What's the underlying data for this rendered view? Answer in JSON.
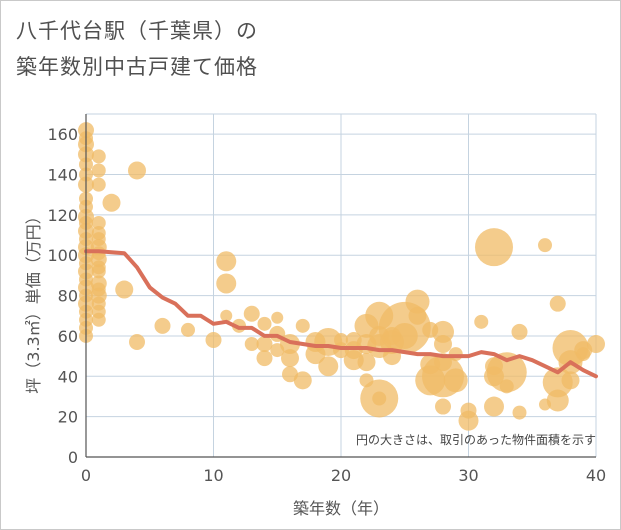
{
  "title_line1": "八千代台駅（千葉県）の",
  "title_line2": "築年数別中古戸建て価格",
  "chart_data": {
    "type": "scatter",
    "xlabel": "築年数（年）",
    "ylabel": "坪（3.3㎡）単価（万円）",
    "note": "円の大きさは、取引のあった物件面積を示す",
    "xlim": [
      0,
      40
    ],
    "ylim": [
      0,
      170
    ],
    "x_ticks": [
      "0",
      "10",
      "20",
      "30",
      "40"
    ],
    "y_ticks": [
      "0",
      "20",
      "40",
      "60",
      "80",
      "100",
      "120",
      "140",
      "160"
    ],
    "x_tick_values": [
      0,
      10,
      20,
      30,
      40
    ],
    "y_tick_values": [
      0,
      20,
      40,
      60,
      80,
      100,
      120,
      140,
      160
    ],
    "grid": true,
    "colors": {
      "bubble": "#f0bb66",
      "line": "#d9705a",
      "grid": "#c5d3e0",
      "axis": "#555555"
    },
    "series": [
      {
        "type": "bubble",
        "points": [
          [
            0,
            162,
            8
          ],
          [
            0,
            158,
            7
          ],
          [
            0,
            155,
            8
          ],
          [
            0,
            150,
            8
          ],
          [
            0,
            145,
            7
          ],
          [
            0,
            140,
            7
          ],
          [
            0,
            135,
            8
          ],
          [
            0,
            128,
            7
          ],
          [
            0,
            124,
            7
          ],
          [
            0,
            119,
            8
          ],
          [
            0,
            116,
            7
          ],
          [
            0,
            112,
            8
          ],
          [
            0,
            108,
            7
          ],
          [
            0,
            104,
            8
          ],
          [
            0,
            100,
            8
          ],
          [
            0,
            96,
            7
          ],
          [
            0,
            92,
            8
          ],
          [
            0,
            88,
            7
          ],
          [
            0,
            84,
            8
          ],
          [
            0,
            80,
            7
          ],
          [
            0,
            76,
            8
          ],
          [
            0,
            72,
            7
          ],
          [
            0,
            68,
            7
          ],
          [
            0,
            64,
            7
          ],
          [
            0,
            60,
            7
          ],
          [
            1,
            149,
            7
          ],
          [
            1,
            142,
            7
          ],
          [
            1,
            135,
            7
          ],
          [
            1,
            116,
            7
          ],
          [
            1,
            111,
            7
          ],
          [
            1,
            108,
            7
          ],
          [
            1,
            104,
            8
          ],
          [
            1,
            101,
            7
          ],
          [
            1,
            98,
            8
          ],
          [
            1,
            94,
            7
          ],
          [
            1,
            92,
            7
          ],
          [
            1,
            86,
            8
          ],
          [
            1,
            83,
            7
          ],
          [
            1,
            80,
            8
          ],
          [
            1,
            76,
            7
          ],
          [
            1,
            72,
            7
          ],
          [
            1,
            68,
            7
          ],
          [
            2,
            126,
            9
          ],
          [
            3,
            83,
            9
          ],
          [
            4,
            142,
            9
          ],
          [
            4,
            57,
            8
          ],
          [
            6,
            65,
            8
          ],
          [
            8,
            63,
            7
          ],
          [
            10,
            58,
            8
          ],
          [
            11,
            97,
            10
          ],
          [
            11,
            86,
            10
          ],
          [
            11,
            70,
            6
          ],
          [
            12,
            65,
            7
          ],
          [
            13,
            71,
            8
          ],
          [
            13,
            56,
            7
          ],
          [
            14,
            49,
            8
          ],
          [
            14,
            56,
            8
          ],
          [
            14,
            66,
            7
          ],
          [
            15,
            61,
            8
          ],
          [
            15,
            53,
            7
          ],
          [
            15,
            69,
            6
          ],
          [
            16,
            56,
            10
          ],
          [
            16,
            49,
            9
          ],
          [
            16,
            41,
            8
          ],
          [
            17,
            65,
            7
          ],
          [
            17,
            38,
            9
          ],
          [
            18,
            57,
            10
          ],
          [
            18,
            51,
            10
          ],
          [
            19,
            45,
            10
          ],
          [
            19,
            57,
            14
          ],
          [
            20,
            53,
            8
          ],
          [
            20,
            58,
            7
          ],
          [
            21,
            48,
            10
          ],
          [
            21,
            58,
            8
          ],
          [
            21,
            53,
            9
          ],
          [
            22,
            65,
            12
          ],
          [
            22,
            56,
            10
          ],
          [
            22,
            47,
            9
          ],
          [
            22,
            38,
            7
          ],
          [
            23,
            70,
            14
          ],
          [
            23,
            60,
            10
          ],
          [
            23,
            55,
            12
          ],
          [
            23,
            29,
            19
          ],
          [
            23,
            29,
            7
          ],
          [
            24,
            57,
            12
          ],
          [
            24,
            50,
            9
          ],
          [
            24,
            60,
            9
          ],
          [
            25,
            64,
            26
          ],
          [
            25,
            60,
            13
          ],
          [
            26,
            77,
            12
          ],
          [
            26,
            70,
            9
          ],
          [
            27,
            63,
            8
          ],
          [
            27,
            46,
            10
          ],
          [
            27,
            38,
            15
          ],
          [
            28,
            62,
            11
          ],
          [
            28,
            56,
            9
          ],
          [
            28,
            47,
            9
          ],
          [
            28,
            40,
            21
          ],
          [
            28,
            25,
            8
          ],
          [
            29,
            51,
            7
          ],
          [
            29,
            38,
            12
          ],
          [
            30,
            23,
            8
          ],
          [
            30,
            18,
            10
          ],
          [
            31,
            67,
            7
          ],
          [
            32,
            104,
            19
          ],
          [
            32,
            45,
            9
          ],
          [
            32,
            40,
            10
          ],
          [
            32,
            25,
            10
          ],
          [
            33,
            42,
            20
          ],
          [
            33,
            35,
            7
          ],
          [
            34,
            62,
            8
          ],
          [
            34,
            22,
            7
          ],
          [
            36,
            105,
            7
          ],
          [
            36,
            26,
            6
          ],
          [
            37,
            76,
            8
          ],
          [
            37,
            37,
            15
          ],
          [
            37,
            28,
            11
          ],
          [
            38,
            54,
            18
          ],
          [
            38,
            47,
            12
          ],
          [
            38,
            38,
            9
          ],
          [
            39,
            51,
            7
          ],
          [
            39,
            53,
            9
          ],
          [
            40,
            56,
            9
          ]
        ]
      },
      {
        "type": "line",
        "x": [
          0,
          1,
          2,
          3,
          4,
          5,
          6,
          7,
          8,
          9,
          10,
          11,
          12,
          13,
          14,
          15,
          16,
          17,
          18,
          19,
          20,
          21,
          22,
          23,
          24,
          25,
          26,
          27,
          28,
          29,
          30,
          31,
          32,
          33,
          34,
          35,
          36,
          37,
          38,
          39,
          40
        ],
        "y": [
          102,
          102,
          101.5,
          101,
          94,
          84,
          79,
          76,
          70,
          70,
          66,
          67,
          64,
          64,
          60,
          60,
          57,
          56,
          55,
          55,
          54,
          54,
          54,
          53,
          53,
          52,
          51,
          51,
          50,
          50,
          50,
          52,
          51,
          48,
          50,
          48,
          45,
          42,
          47,
          43,
          40
        ]
      }
    ]
  }
}
